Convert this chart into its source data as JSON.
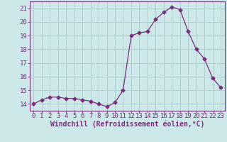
{
  "x": [
    0,
    1,
    2,
    3,
    4,
    5,
    6,
    7,
    8,
    9,
    10,
    11,
    12,
    13,
    14,
    15,
    16,
    17,
    18,
    19,
    20,
    21,
    22,
    23
  ],
  "y": [
    14.0,
    14.3,
    14.5,
    14.5,
    14.4,
    14.4,
    14.3,
    14.2,
    14.0,
    13.8,
    14.1,
    15.0,
    19.0,
    19.2,
    19.3,
    20.2,
    20.7,
    21.1,
    20.9,
    19.3,
    18.0,
    17.3,
    15.9,
    15.2
  ],
  "line_color": "#7B2F7B",
  "marker": "D",
  "marker_size": 2.5,
  "background_color": "#cce8e8",
  "grid_color": "#b0d0d0",
  "xlabel": "Windchill (Refroidissement éolien,°C)",
  "xlabel_fontsize": 7,
  "ylabel_ticks": [
    14,
    15,
    16,
    17,
    18,
    19,
    20,
    21
  ],
  "xtick_labels": [
    "0",
    "1",
    "2",
    "3",
    "4",
    "5",
    "6",
    "7",
    "8",
    "9",
    "10",
    "11",
    "12",
    "13",
    "14",
    "15",
    "16",
    "17",
    "18",
    "19",
    "20",
    "21",
    "22",
    "23"
  ],
  "xlim": [
    -0.5,
    23.5
  ],
  "ylim": [
    13.5,
    21.5
  ],
  "tick_fontsize": 6.5
}
